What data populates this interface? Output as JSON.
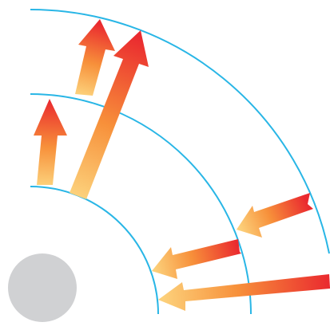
{
  "diagram": {
    "arc_color": "#29b6e6",
    "core_color": "#d0d1d3",
    "arrow_tail_color": "#fcd07a",
    "arrow_mid_color": "#f7903a",
    "arrow_head_color": "#ea2a2f",
    "arcs": [
      "inner-arc",
      "middle-arc",
      "outer-arc"
    ],
    "arrows_outward": [
      "inner-to-middle-left",
      "inner-to-outer",
      "middle-to-outer"
    ],
    "arrows_inward": [
      "outer-to-middle",
      "middle-to-inner",
      "outer-to-inner"
    ]
  }
}
